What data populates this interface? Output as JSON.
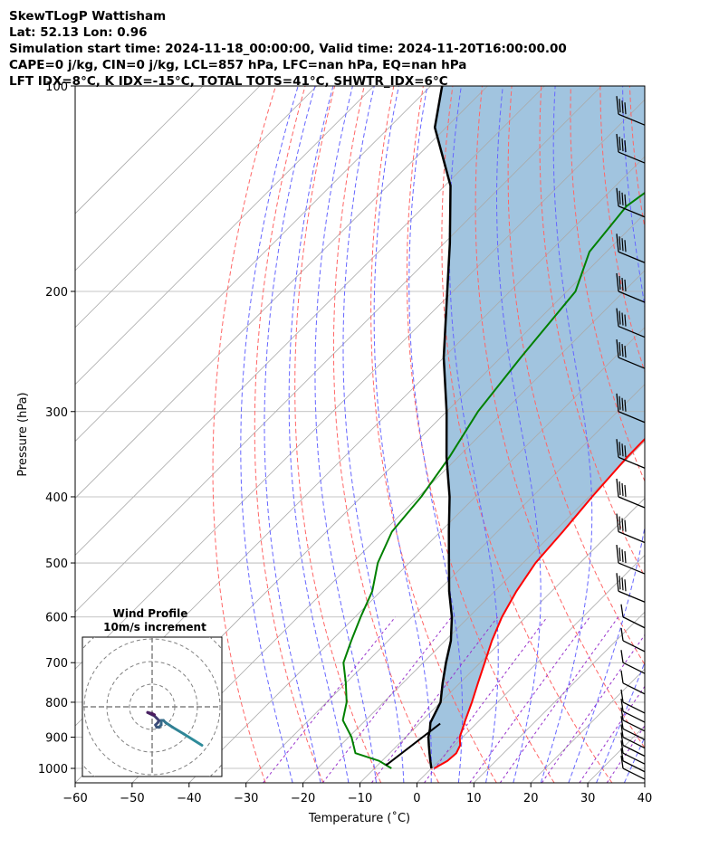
{
  "header": {
    "title": "SkewTLogP Wattisham",
    "location": "Lat: 52.13   Lon: 0.96",
    "times": "Simulation start time: 2024-11-18_00:00:00, Valid time: 2024-11-20T16:00:00.00",
    "parameters": "CAPE=0 j/kg, CIN=0 j/kg, LCL=857 hPa, LFC=nan hPa, EQ=nan hPa",
    "indices": "LFT IDX=8°C, K IDX=-15°C, TOTAL TOTS=41°C, SHWTR_IDX=6°C"
  },
  "chart_data": [
    {
      "type": "line",
      "subtype": "skew-T log-P diagram",
      "xlabel": "Temperature (˚C)",
      "ylabel": "Pressure (hPa)",
      "xlim": [
        -60,
        40
      ],
      "ylim": [
        1050,
        100
      ],
      "y_scale": "log",
      "x_ticks": [
        -60,
        -50,
        -40,
        -30,
        -20,
        -10,
        0,
        10,
        20,
        30,
        40
      ],
      "x_tick_labels": [
        "−60",
        "−50",
        "−40",
        "−30",
        "−20",
        "−10",
        "0",
        "10",
        "20",
        "30",
        "40"
      ],
      "y_ticks": [
        1000,
        900,
        800,
        700,
        600,
        500,
        400,
        300,
        200,
        100
      ],
      "y_tick_labels": [
        "1000",
        "900",
        "800",
        "700",
        "600",
        "500",
        "400",
        "300",
        "200",
        "100"
      ],
      "grid": true,
      "skew": "45 degrees",
      "colors": {
        "temperature": "#ff0000",
        "dewpoint": "#008000",
        "parcel": "#000000",
        "cape_fill": "#a1c4df",
        "dry_adiabats": "#ff6666",
        "moist_adiabats": "#6666ff",
        "mixing_ratio": "#9933cc",
        "isotherms": "#aaaaaa"
      },
      "series": [
        {
          "name": "",
          "role": "temperature",
          "points": [
            [
              0.5,
              1000
            ],
            [
              1.5,
              975
            ],
            [
              1.7,
              950
            ],
            [
              1.0,
              925
            ],
            [
              -0.5,
              900
            ],
            [
              -2.5,
              850
            ],
            [
              -4.5,
              800
            ],
            [
              -6.8,
              750
            ],
            [
              -9.2,
              700
            ],
            [
              -11.8,
              650
            ],
            [
              -14.2,
              600
            ],
            [
              -16.2,
              550
            ],
            [
              -17.8,
              500
            ],
            [
              -18.5,
              450
            ],
            [
              -19.5,
              400
            ],
            [
              -20.3,
              350
            ],
            [
              -20.5,
              300
            ],
            [
              -20.2,
              250
            ],
            [
              -19.0,
              200
            ],
            [
              -18.0,
              175
            ],
            [
              -17.5,
              150
            ],
            [
              -14.5,
              125
            ],
            [
              -10.0,
              100
            ]
          ]
        },
        {
          "name": "",
          "role": "dewpoint",
          "points": [
            [
              -7.0,
              1000
            ],
            [
              -10.5,
              975
            ],
            [
              -16.0,
              950
            ],
            [
              -19.5,
              900
            ],
            [
              -24.0,
              850
            ],
            [
              -26.5,
              800
            ],
            [
              -30.0,
              750
            ],
            [
              -34.0,
              700
            ],
            [
              -36.5,
              650
            ],
            [
              -39.0,
              600
            ],
            [
              -41.5,
              550
            ],
            [
              -45.5,
              500
            ],
            [
              -48.5,
              450
            ],
            [
              -49.5,
              400
            ],
            [
              -51.5,
              350
            ],
            [
              -54.5,
              300
            ],
            [
              -56.5,
              250
            ],
            [
              -58.5,
              200
            ],
            [
              -63.0,
              175
            ],
            [
              -64.5,
              150
            ],
            [
              -61.0,
              125
            ],
            [
              -55.0,
              100
            ]
          ]
        },
        {
          "name": "",
          "role": "parcel",
          "points": [
            [
              0.0,
              1000
            ],
            [
              -1.5,
              975
            ],
            [
              -3.0,
              950
            ],
            [
              -4.5,
              925
            ],
            [
              -6.0,
              900
            ],
            [
              -7.2,
              875
            ],
            [
              -8.2,
              857
            ],
            [
              -10.0,
              800
            ],
            [
              -13.0,
              750
            ],
            [
              -16.0,
              700
            ],
            [
              -19.0,
              650
            ],
            [
              -23.0,
              600
            ],
            [
              -28.0,
              550
            ],
            [
              -33.0,
              500
            ],
            [
              -38.5,
              450
            ],
            [
              -44.5,
              400
            ],
            [
              -52.0,
              350
            ],
            [
              -60.0,
              300
            ],
            [
              -70.0,
              250
            ],
            [
              -81.0,
              200
            ],
            [
              -89.0,
              170
            ],
            [
              -99.0,
              140
            ],
            [
              -112.0,
              115
            ],
            [
              -118.0,
              100
            ]
          ]
        },
        {
          "name": "",
          "role": "lower-parcel",
          "points": [
            [
              -8.5,
              990
            ],
            [
              -6.3,
              860
            ]
          ]
        }
      ],
      "shaded_area": "between parcel and temperature profiles",
      "wind_barbs": {
        "position": "right edge",
        "pressures": [
          1000,
          975,
          950,
          925,
          900,
          875,
          850,
          825,
          800,
          750,
          700,
          650,
          600,
          550,
          500,
          450,
          400,
          350,
          300,
          250,
          225,
          200,
          175,
          150,
          125,
          110
        ]
      }
    },
    {
      "type": "line",
      "subtype": "hodograph",
      "title": "Wind Profile",
      "subtitle": "10m/s increment",
      "rings": 4,
      "colors": {
        "rings": "#808080",
        "crosshair": "#808080",
        "trace_low": "#2e8b9a",
        "trace_high": "#4b1a5e"
      },
      "trace": [
        [
          22,
          -17
        ],
        [
          14,
          -12
        ],
        [
          9,
          -9
        ],
        [
          6,
          -7
        ],
        [
          5,
          -6
        ],
        [
          4,
          -6
        ],
        [
          4,
          -8
        ],
        [
          3,
          -9
        ],
        [
          2,
          -9
        ],
        [
          1.5,
          -8
        ],
        [
          2.5,
          -7
        ],
        [
          3,
          -6
        ],
        [
          2,
          -5
        ],
        [
          1,
          -4
        ],
        [
          0,
          -3.5
        ],
        [
          -1,
          -3
        ],
        [
          -2,
          -2.5
        ],
        [
          0,
          -3
        ],
        [
          1,
          -3.5
        ]
      ]
    }
  ]
}
